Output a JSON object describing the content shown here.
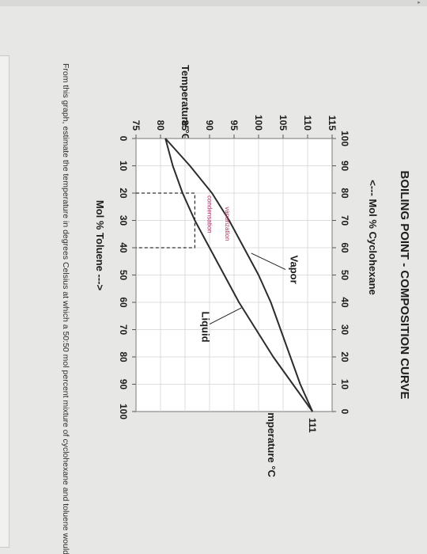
{
  "page": {
    "question": "From this graph, estimate the temperature in degrees Celsius at which a 50:50 mol percent mixture of cyclohexane and toluene would boil."
  },
  "chart_data": {
    "type": "line",
    "title": "BOILING POINT - COMPOSITION CURVE",
    "top_axis_label": "<--- Mol % Cyclohexane",
    "top_ticks": [
      "100",
      "90",
      "80",
      "70",
      "60",
      "50",
      "40",
      "30",
      "20",
      "10",
      "0"
    ],
    "xlabel": "Mol % Toluene --->",
    "x_ticks": [
      "0",
      "10",
      "20",
      "30",
      "40",
      "50",
      "60",
      "70",
      "80",
      "90",
      "100"
    ],
    "ylabel_left": "Temperature °C",
    "ylabel_right": "Temperature °C",
    "y_ticks": [
      "75",
      "80",
      "85",
      "90",
      "95",
      "100",
      "105",
      "110",
      "115"
    ],
    "right_tick_label": "111",
    "xlim": [
      0,
      100
    ],
    "ylim": [
      75,
      115
    ],
    "annotations": {
      "vapor": "Vapor",
      "liquid": "Liquid",
      "condensation": "condensation",
      "vaporization": "vaporization"
    },
    "series": [
      {
        "name": "Vapor",
        "x": [
          0,
          10,
          20,
          30,
          40,
          50,
          60,
          70,
          80,
          90,
          100
        ],
        "y": [
          81,
          86,
          90.5,
          94,
          97,
          100,
          102.5,
          104.5,
          106.5,
          108.5,
          111
        ]
      },
      {
        "name": "Liquid",
        "x": [
          0,
          10,
          20,
          30,
          40,
          50,
          60,
          70,
          80,
          90,
          100
        ],
        "y": [
          81,
          82.5,
          84.5,
          87,
          90,
          93,
          96,
          99.5,
          103,
          107,
          111
        ]
      }
    ],
    "guides": [
      {
        "x": [
          20,
          20,
          40,
          40
        ],
        "y": [
          75,
          87,
          87,
          75
        ]
      }
    ],
    "colors": {
      "line": "#2c2c2c",
      "guide": "#333333",
      "annotation": "#b0306a"
    }
  }
}
